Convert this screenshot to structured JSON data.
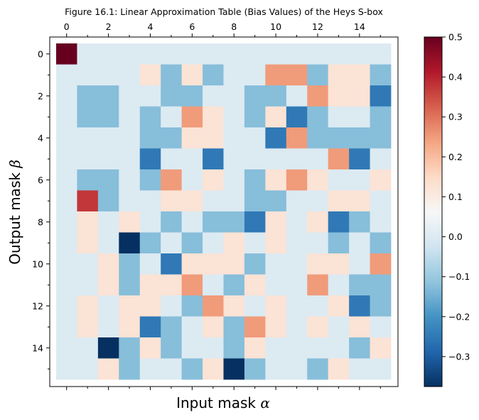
{
  "chart_data": {
    "type": "heatmap",
    "title": "Figure 16.1: Linear Approximation Table (Bias Values) of the Heys S-box",
    "xlabel": "Input mask",
    "xlabel_symbol": "α",
    "ylabel": "Output mask",
    "ylabel_symbol": "β",
    "x_tick_labels": [
      "0",
      "2",
      "4",
      "6",
      "8",
      "10",
      "12",
      "14"
    ],
    "y_tick_labels": [
      "0",
      "2",
      "4",
      "6",
      "8",
      "10",
      "12",
      "14"
    ],
    "x_axis_position": "top",
    "colormap": "RdBu_r",
    "colorbar": {
      "vmin": -0.375,
      "vmax": 0.5,
      "tick_labels": [
        "0.5",
        "0.4",
        "0.3",
        "0.2",
        "0.1",
        "0.0",
        "−0.1",
        "−0.2",
        "−0.3"
      ],
      "tick_values": [
        0.5,
        0.4,
        0.3,
        0.2,
        0.1,
        0.0,
        -0.1,
        -0.2,
        -0.3
      ]
    },
    "rows": 16,
    "cols": 16,
    "values": [
      [
        0.5,
        0,
        0,
        0,
        0,
        0,
        0,
        0,
        0,
        0,
        0,
        0,
        0,
        0,
        0,
        0
      ],
      [
        0,
        0,
        0,
        0,
        0.125,
        -0.125,
        0.125,
        -0.125,
        0,
        0,
        0.25,
        0.25,
        -0.125,
        0.125,
        0.125,
        -0.125
      ],
      [
        0,
        -0.125,
        -0.125,
        0,
        0,
        -0.125,
        -0.125,
        0,
        0,
        -0.125,
        -0.125,
        0,
        0.25,
        0.125,
        0.125,
        -0.25
      ],
      [
        0,
        -0.125,
        -0.125,
        0,
        -0.125,
        0,
        0.25,
        0.125,
        0,
        -0.125,
        0.125,
        -0.25,
        -0.125,
        0,
        0,
        -0.125
      ],
      [
        0,
        0,
        0,
        0,
        -0.125,
        -0.125,
        0.125,
        0.125,
        0,
        0,
        -0.25,
        0.25,
        -0.125,
        -0.125,
        -0.125,
        -0.125
      ],
      [
        0,
        0,
        0,
        0,
        -0.25,
        0,
        0,
        -0.25,
        0,
        0,
        0,
        0,
        0,
        0.25,
        -0.25,
        0
      ],
      [
        0,
        -0.125,
        -0.125,
        0,
        -0.125,
        0.25,
        0,
        0.125,
        0,
        -0.125,
        0.125,
        0.25,
        0.125,
        0,
        0,
        0.125
      ],
      [
        0,
        0.375,
        -0.125,
        0,
        0,
        0.125,
        0.125,
        0,
        0,
        -0.125,
        -0.125,
        0,
        0,
        0.125,
        0.125,
        0
      ],
      [
        0,
        0.125,
        0,
        0.125,
        0,
        -0.125,
        0,
        -0.125,
        -0.125,
        -0.25,
        0.125,
        0,
        0.125,
        -0.25,
        -0.125,
        0
      ],
      [
        0,
        0.125,
        0,
        -0.375,
        -0.125,
        0,
        -0.125,
        0,
        0.125,
        0,
        0.125,
        0,
        0,
        -0.125,
        0,
        -0.125
      ],
      [
        0,
        0,
        0.125,
        -0.125,
        0,
        -0.25,
        0.125,
        0.125,
        0.125,
        -0.125,
        0,
        0,
        0.125,
        0.125,
        0,
        0.25
      ],
      [
        0,
        0,
        0.125,
        -0.125,
        0.125,
        0.125,
        0.25,
        0,
        -0.125,
        0.125,
        0,
        0,
        0.25,
        0,
        -0.125,
        -0.125
      ],
      [
        0,
        0.125,
        0,
        0.125,
        0.125,
        0,
        -0.125,
        0.25,
        0.125,
        0,
        0.125,
        0,
        0,
        0.125,
        -0.25,
        -0.125
      ],
      [
        0,
        0.125,
        0,
        0.125,
        -0.25,
        -0.125,
        0,
        0.125,
        -0.125,
        0.25,
        0.125,
        0,
        0.125,
        0,
        0.125,
        0
      ],
      [
        0,
        0,
        -0.375,
        -0.125,
        0.125,
        -0.125,
        0,
        0,
        -0.125,
        0.125,
        0,
        0,
        0,
        0,
        -0.125,
        0.125
      ],
      [
        0,
        0,
        0.125,
        -0.125,
        0,
        0,
        -0.125,
        0.125,
        -0.375,
        -0.125,
        0,
        0,
        -0.125,
        0.125,
        0,
        0
      ]
    ]
  }
}
